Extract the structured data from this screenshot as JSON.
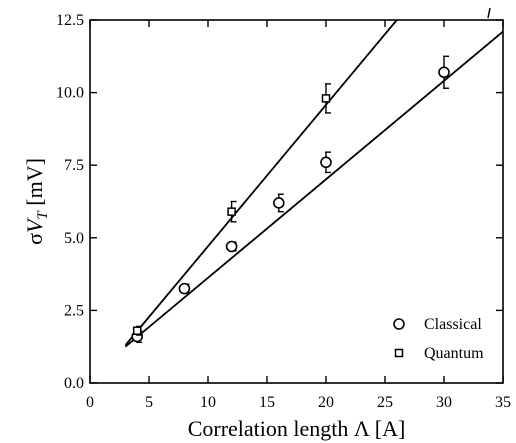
{
  "chart_data": {
    "type": "scatter",
    "xlabel": "Correlation length Λ [A]",
    "ylabel_parts": {
      "sigma": "σ",
      "v": "V",
      "sub": "T",
      "unit": " [mV]"
    },
    "xlim": [
      0,
      35
    ],
    "ylim": [
      0,
      12.5
    ],
    "x_ticks": [
      0,
      5,
      10,
      15,
      20,
      25,
      30,
      35
    ],
    "y_ticks": [
      0.0,
      2.5,
      5.0,
      7.5,
      10.0,
      12.5
    ],
    "x_tick_labels": [
      "0",
      "5",
      "10",
      "15",
      "20",
      "25",
      "30",
      "35"
    ],
    "y_tick_labels": [
      "0.0",
      "2.5",
      "5.0",
      "7.5",
      "10.0",
      "12.5"
    ],
    "legend_position": "bottom-right",
    "series": [
      {
        "name": "Classical",
        "marker": "circle",
        "x": [
          4,
          8,
          12,
          16,
          20,
          30
        ],
        "y": [
          1.6,
          3.25,
          4.7,
          6.2,
          7.6,
          10.7
        ],
        "err": [
          0.2,
          0.15,
          0.15,
          0.3,
          0.35,
          0.55
        ],
        "fit_line": {
          "x": [
            3,
            35
          ],
          "y": [
            1.25,
            12.1
          ]
        }
      },
      {
        "name": "Quantum",
        "marker": "square",
        "x": [
          4,
          12,
          20
        ],
        "y": [
          1.8,
          5.9,
          9.8
        ],
        "err": [
          0.15,
          0.35,
          0.5
        ],
        "fit_line": {
          "x": [
            3,
            26
          ],
          "y": [
            1.3,
            12.5
          ]
        }
      }
    ]
  }
}
